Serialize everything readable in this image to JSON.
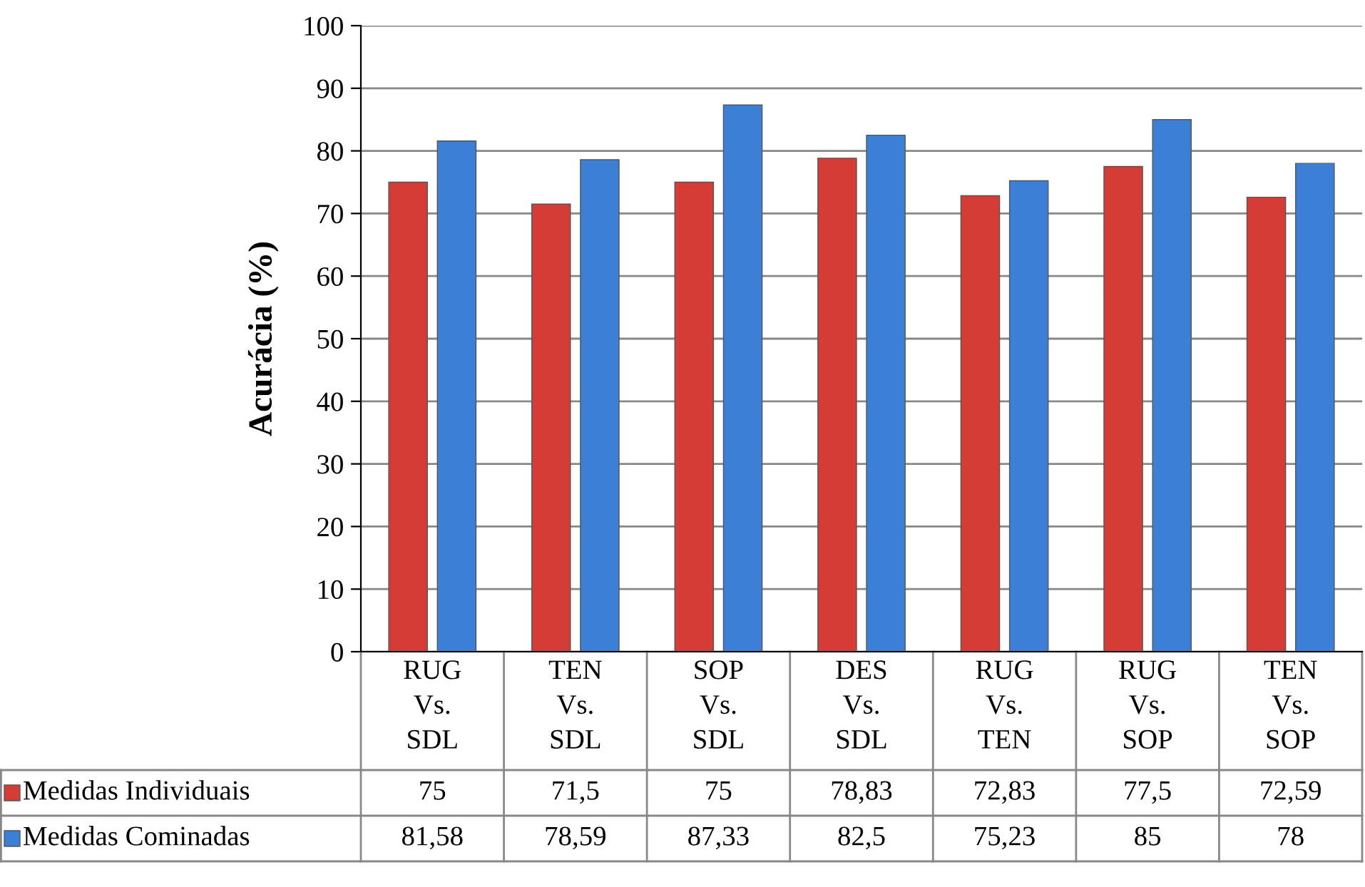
{
  "chart_data": {
    "type": "bar",
    "ylabel": "Acurácia (%)",
    "categories": [
      "RUG Vs. SDL",
      "TEN Vs. SDL",
      "SOP Vs. SDL",
      "DES Vs. SDL",
      "RUG Vs. TEN",
      "RUG Vs. SOP",
      "TEN Vs. SOP"
    ],
    "series": [
      {
        "name": "Medidas Individuais",
        "color": "#d63c36",
        "values": [
          75,
          71.5,
          75,
          78.83,
          72.83,
          77.5,
          72.59
        ],
        "value_labels": [
          "75",
          "71,5",
          "75",
          "78,83",
          "72,83",
          "77,5",
          "72,59"
        ]
      },
      {
        "name": "Medidas Cominadas",
        "color": "#3b7fd6",
        "values": [
          81.58,
          78.59,
          87.33,
          82.5,
          75.23,
          85,
          78
        ],
        "value_labels": [
          "81,58",
          "78,59",
          "87,33",
          "82,5",
          "75,23",
          "85",
          "78"
        ]
      }
    ],
    "ylim": [
      0,
      100
    ],
    "yticks": [
      0,
      10,
      20,
      30,
      40,
      50,
      60,
      70,
      80,
      90,
      100
    ],
    "grid": "y",
    "legend": "bottom"
  }
}
